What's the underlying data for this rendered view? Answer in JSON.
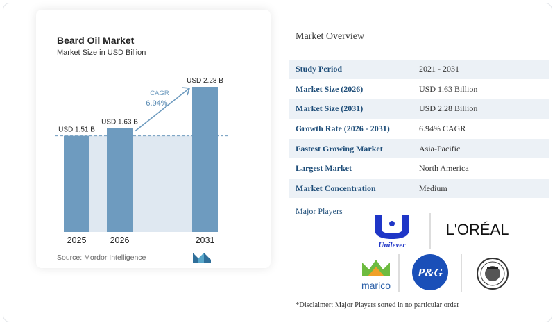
{
  "chart": {
    "title": "Beard Oil Market",
    "subtitle": "Market Size in USD Billion",
    "source": "Source: Mordor Intelligence",
    "cagr_label": "CAGR",
    "cagr_value": "6.94%"
  },
  "chart_data": {
    "type": "bar",
    "categories": [
      "2025",
      "2026",
      "2031"
    ],
    "values": [
      1.51,
      1.63,
      2.28
    ],
    "value_labels": [
      "USD 1.51 B",
      "USD 1.63 B",
      "USD 2.28 B"
    ],
    "title": "Beard Oil Market",
    "subtitle": "Market Size in USD Billion",
    "xlabel": "",
    "ylabel": "",
    "ylim": [
      0,
      2.4
    ],
    "annotation": "CAGR 6.94%",
    "bar_color": "#6e9bbf",
    "highlight_color": "#dfe8f1"
  },
  "overview": {
    "title": "Market Overview",
    "rows": [
      {
        "key": "Study Period",
        "value": "2021 - 2031"
      },
      {
        "key": "Market Size (2026)",
        "value": "USD 1.63 Billion"
      },
      {
        "key": "Market Size (2031)",
        "value": "USD 2.28 Billion"
      },
      {
        "key": "Growth Rate (2026 - 2031)",
        "value": "6.94% CAGR"
      },
      {
        "key": "Fastest Growing Market",
        "value": "Asia-Pacific"
      },
      {
        "key": "Largest Market",
        "value": "North America"
      },
      {
        "key": "Market Concentration",
        "value": "Medium"
      }
    ]
  },
  "players": {
    "title": "Major Players",
    "logos": [
      "Unilever",
      "L'ORÉAL",
      "marico",
      "P&G",
      "Honest Amish"
    ]
  },
  "disclaimer": "*Disclaimer: Major Players sorted in no particular order",
  "colors": {
    "label_blue": "#1f4e79",
    "row_alt": "#ecf1f6",
    "unilever_blue": "#1f36c7",
    "pg_blue": "#1a4fb8",
    "marico_green": "#6dbb3f"
  }
}
